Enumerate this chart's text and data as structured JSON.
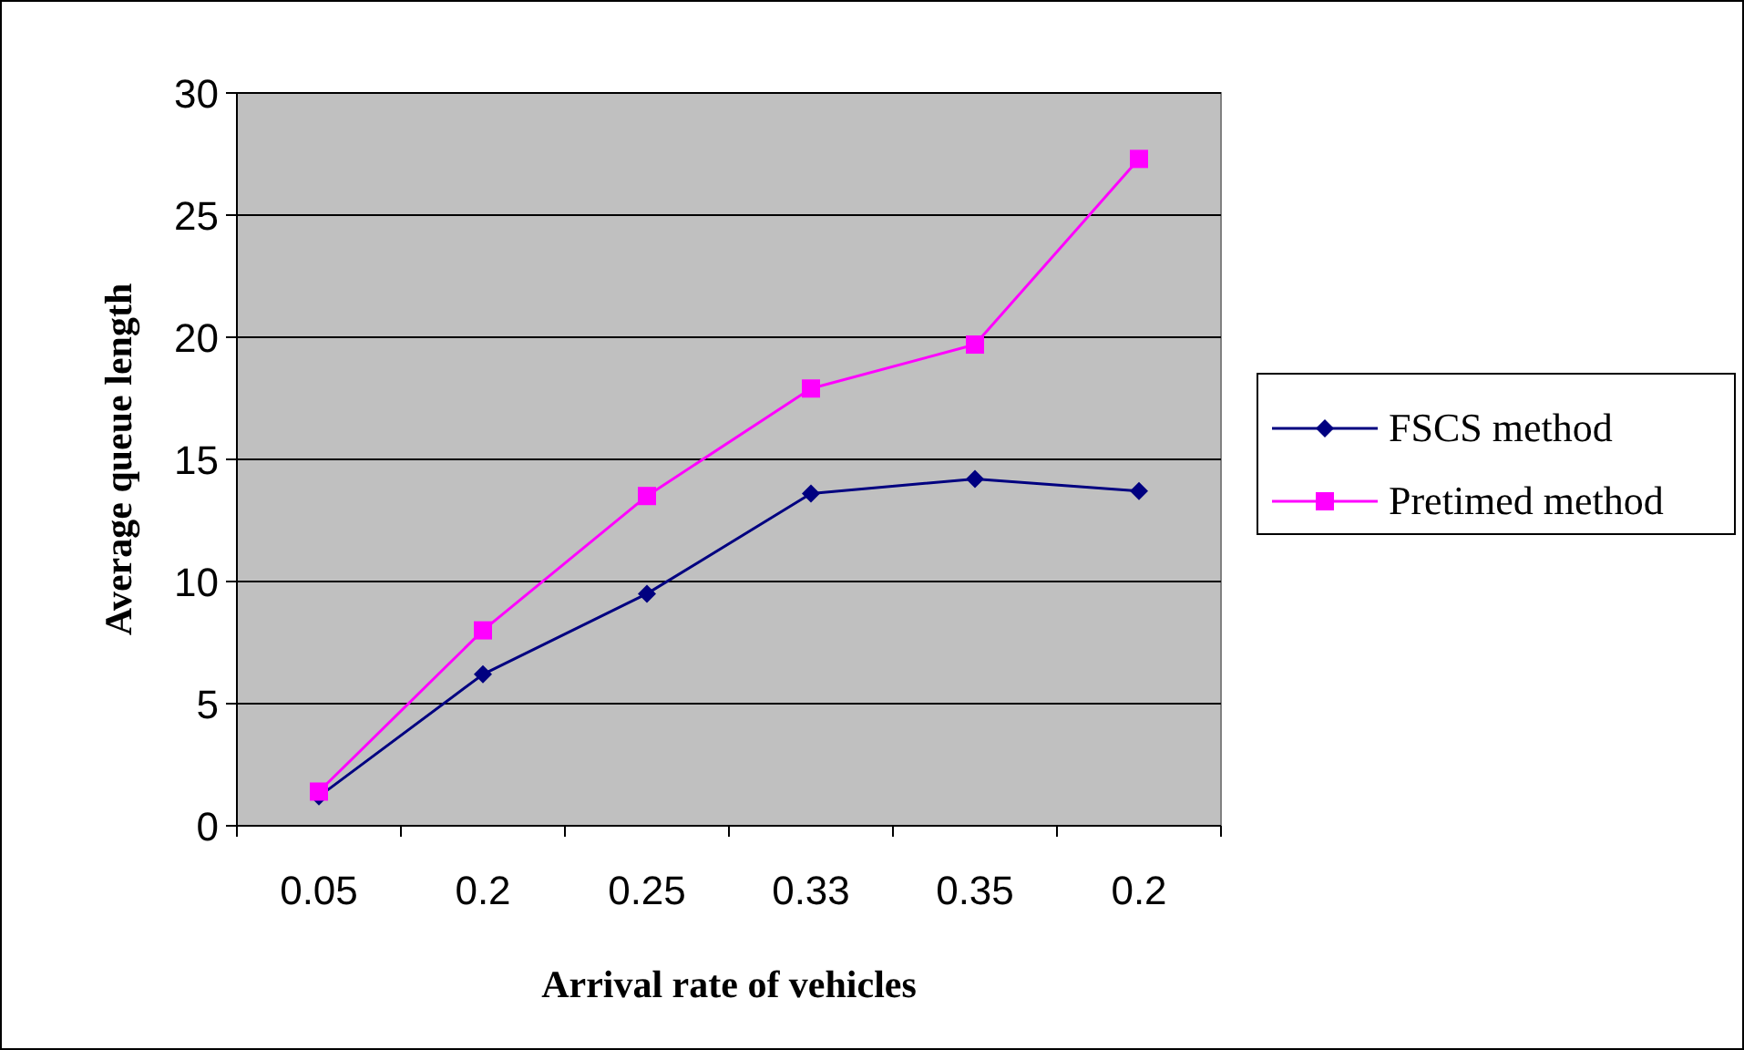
{
  "chart_data": {
    "type": "line",
    "xlabel": "Arrival rate of vehicles",
    "ylabel": "Average queue length",
    "categories": [
      "0.05",
      "0.2",
      "0.25",
      "0.33",
      "0.35",
      "0.2"
    ],
    "series": [
      {
        "name": "FSCS method",
        "color": "#000080",
        "marker": "diamond",
        "values": [
          1.2,
          6.2,
          9.5,
          13.6,
          14.2,
          13.7
        ]
      },
      {
        "name": "Pretimed method",
        "color": "#ff00ff",
        "marker": "square",
        "values": [
          1.4,
          8.0,
          13.5,
          17.9,
          19.7,
          27.3
        ]
      }
    ],
    "ylim": [
      0,
      30
    ],
    "yticks": [
      0,
      5,
      10,
      15,
      20,
      25,
      30
    ],
    "grid": "y",
    "legend": "right"
  }
}
